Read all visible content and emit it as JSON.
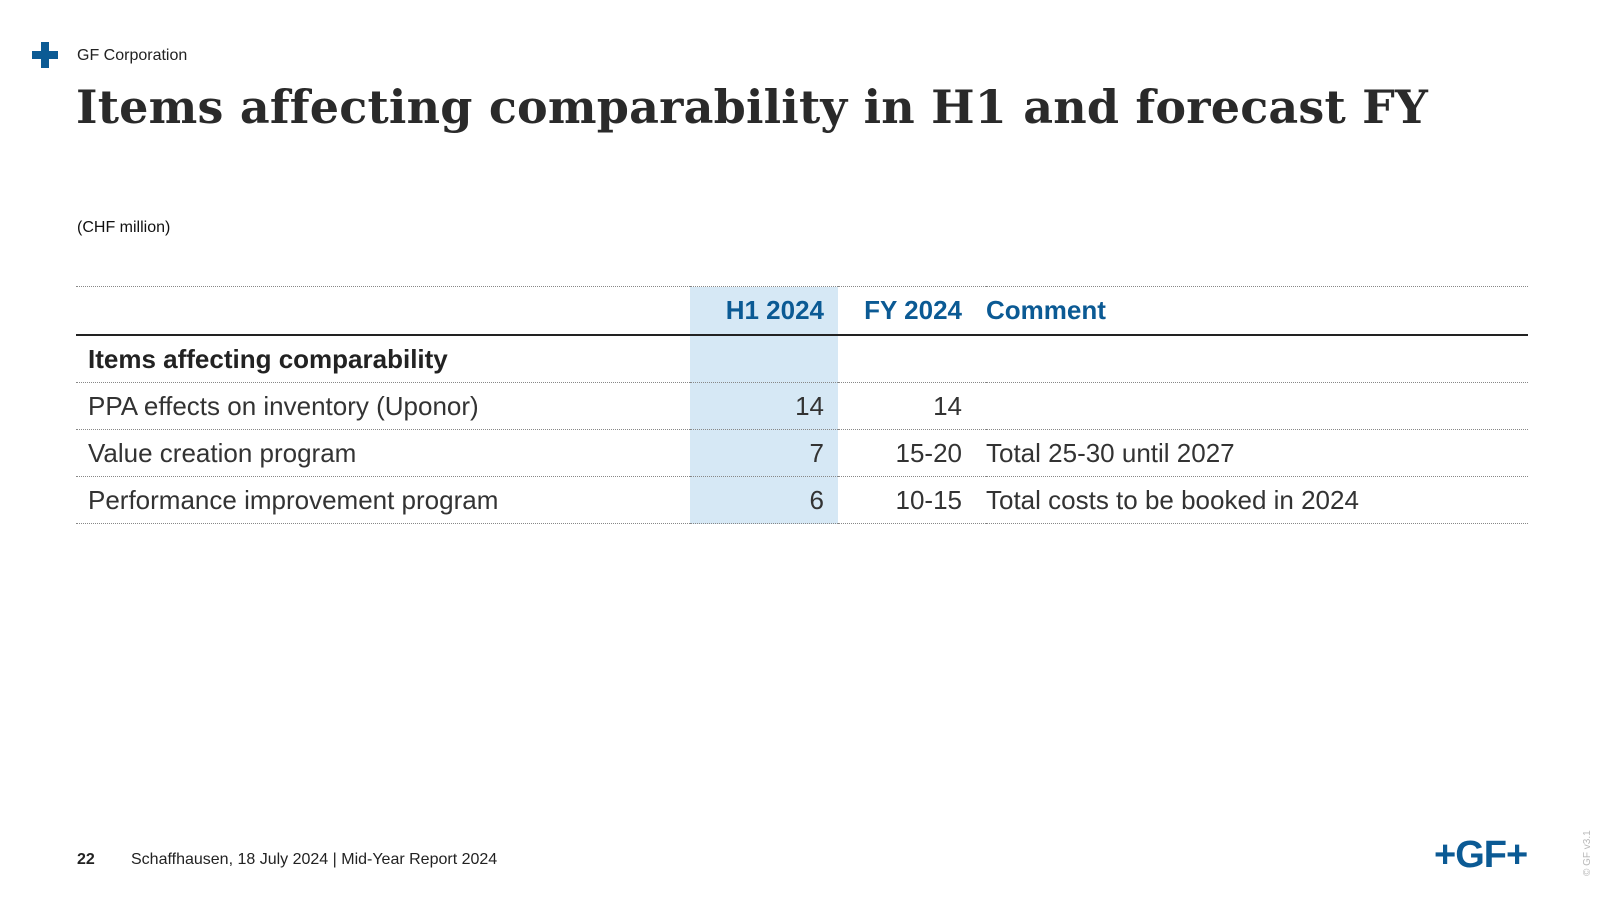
{
  "header": {
    "org": "GF Corporation",
    "title": "Items affecting comparability in H1 and forecast FY",
    "unit": "(CHF million)"
  },
  "table": {
    "columns": [
      "",
      "H1 2024",
      "FY 2024",
      "Comment"
    ],
    "section_label": "Items affecting comparability",
    "rows": [
      {
        "label": "PPA effects on inventory (Uponor)",
        "h1": "14",
        "fy": "14",
        "comment": ""
      },
      {
        "label": "Value creation program",
        "h1": "7",
        "fy": "15-20",
        "comment": "Total 25-30 until 2027"
      },
      {
        "label": "Performance improvement program",
        "h1": "6",
        "fy": "10-15",
        "comment": "Total costs to be booked in 2024"
      }
    ]
  },
  "footer": {
    "page": "22",
    "text": "Schaffhausen, 18 July 2024 | Mid-Year Report 2024",
    "logo": "+GF+",
    "copyright": "© GF v3.1"
  },
  "colors": {
    "brand": "#0b5a94",
    "h1_highlight": "#d6e8f5"
  },
  "icons": {
    "brand_mark": "plus-cross-icon"
  }
}
